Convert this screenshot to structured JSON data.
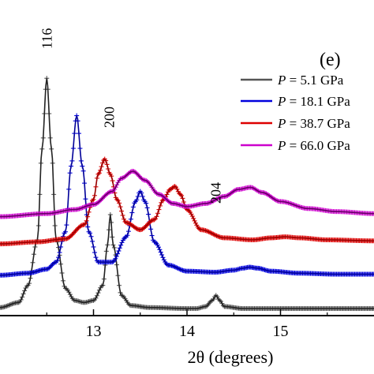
{
  "chart_data": {
    "type": "line",
    "panel_label": "(e)",
    "xlabel": "2θ (degrees)",
    "x_range": [
      12.0,
      16.0
    ],
    "x_ticks": [
      "13",
      "14",
      "15"
    ],
    "x_tick_values": [
      13,
      14,
      15
    ],
    "grid": false,
    "legend_placement": "top-right",
    "legend": [
      {
        "var": "P",
        "text": " = 5.1 GPa",
        "color": "#555555"
      },
      {
        "var": "P",
        "text": " = 18.1 GPa",
        "color": "#0000dd"
      },
      {
        "var": "P",
        "text": " = 38.7 GPa",
        "color": "#dd0000"
      },
      {
        "var": "P",
        "text": " = 66.0 GPa",
        "color": "#cc00cc"
      }
    ],
    "annotations": [
      {
        "text": "116",
        "x": 12.5
      },
      {
        "text": "200",
        "x": 13.17
      },
      {
        "text": "204",
        "x": 14.31
      }
    ],
    "series": [
      {
        "color": "#555555",
        "line_color": "#222222",
        "offset": 3.15,
        "x": [
          12.0,
          12.2,
          12.3,
          12.4,
          12.45,
          12.5,
          12.55,
          12.6,
          12.7,
          12.8,
          12.9,
          13.0,
          13.1,
          13.15,
          13.18,
          13.21,
          13.3,
          13.4,
          13.6,
          14.0,
          14.1,
          14.2,
          14.27,
          14.31,
          14.35,
          14.4,
          14.6,
          15.0,
          15.5,
          16.0
        ],
        "y": [
          0.03,
          0.08,
          0.25,
          0.7,
          1.6,
          2.3,
          1.6,
          0.7,
          0.22,
          0.1,
          0.08,
          0.1,
          0.25,
          0.65,
          0.95,
          0.65,
          0.15,
          0.05,
          0.03,
          0.02,
          0.02,
          0.04,
          0.1,
          0.15,
          0.1,
          0.04,
          0.02,
          0.02,
          0.02,
          0.02
        ]
      },
      {
        "color": "#0000dd",
        "line_color": "#000099",
        "offset": 2.82,
        "x": [
          12.0,
          12.3,
          12.5,
          12.6,
          12.7,
          12.76,
          12.82,
          12.88,
          12.95,
          13.05,
          13.2,
          13.35,
          13.45,
          13.5,
          13.55,
          13.65,
          13.8,
          14.0,
          14.3,
          14.5,
          14.6,
          14.67,
          14.75,
          14.9,
          15.2,
          15.6,
          16.0
        ],
        "y": [
          0.02,
          0.04,
          0.08,
          0.15,
          0.45,
          1.1,
          1.6,
          1.1,
          0.45,
          0.15,
          0.15,
          0.4,
          0.75,
          0.85,
          0.75,
          0.35,
          0.12,
          0.06,
          0.05,
          0.07,
          0.09,
          0.1,
          0.09,
          0.06,
          0.04,
          0.03,
          0.03
        ]
      },
      {
        "color": "#dd0000",
        "line_color": "#990000",
        "offset": 2.5,
        "x": [
          12.0,
          12.4,
          12.7,
          12.9,
          13.0,
          13.05,
          13.12,
          13.18,
          13.25,
          13.35,
          13.5,
          13.65,
          13.75,
          13.82,
          13.87,
          13.93,
          14.0,
          14.15,
          14.4,
          14.7,
          14.9,
          15.05,
          15.2,
          15.5,
          16.0
        ],
        "y": [
          0.01,
          0.03,
          0.06,
          0.2,
          0.45,
          0.7,
          0.85,
          0.7,
          0.45,
          0.22,
          0.15,
          0.25,
          0.45,
          0.55,
          0.58,
          0.5,
          0.35,
          0.15,
          0.07,
          0.05,
          0.07,
          0.08,
          0.07,
          0.05,
          0.04
        ]
      },
      {
        "color": "#cc00cc",
        "line_color": "#660066",
        "offset": 2.22,
        "x": [
          12.0,
          12.5,
          12.8,
          13.0,
          13.2,
          13.3,
          13.42,
          13.55,
          13.7,
          13.85,
          14.0,
          14.2,
          14.4,
          14.55,
          14.68,
          14.8,
          15.0,
          15.3,
          15.6,
          16.0
        ],
        "y": [
          0.0,
          0.03,
          0.07,
          0.12,
          0.25,
          0.38,
          0.45,
          0.36,
          0.22,
          0.13,
          0.1,
          0.13,
          0.2,
          0.27,
          0.29,
          0.24,
          0.15,
          0.08,
          0.05,
          0.03
        ]
      }
    ]
  }
}
